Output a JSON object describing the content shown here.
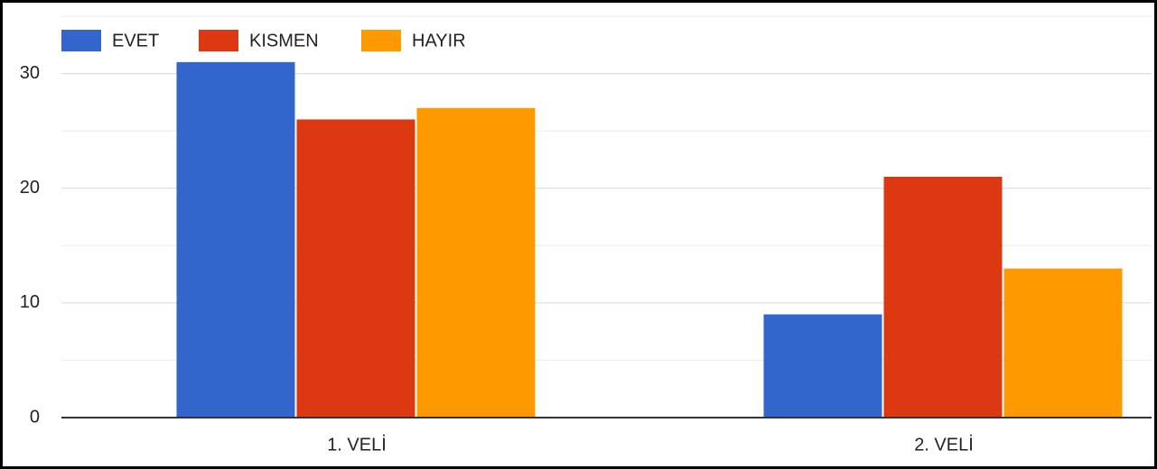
{
  "chart_data": {
    "type": "bar",
    "categories": [
      "1. VELİ",
      "2. VELİ"
    ],
    "series": [
      {
        "name": "EVET",
        "color": "#3366cc",
        "values": [
          31,
          9
        ]
      },
      {
        "name": "KISMEN",
        "color": "#dc3912",
        "values": [
          26,
          21
        ]
      },
      {
        "name": "HAYIR",
        "color": "#ff9900",
        "values": [
          27,
          13
        ]
      }
    ],
    "ylim": [
      0,
      35
    ],
    "yticks": [
      0,
      10,
      20,
      30
    ],
    "minor_yticks": [
      5,
      15,
      25,
      35
    ],
    "grid": true,
    "legend": "top"
  }
}
